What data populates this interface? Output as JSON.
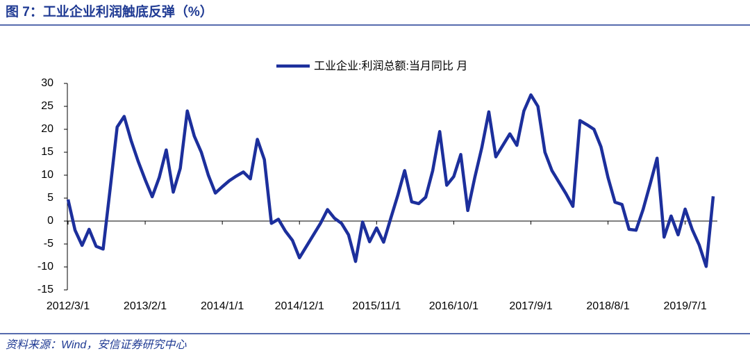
{
  "chart_data": {
    "type": "line",
    "title": "图 7：工业企业利润触底反弹（%）",
    "source": "资料来源：Wind，安信证券研究中心",
    "categories": [
      "2012/3/1",
      null,
      null,
      null,
      null,
      null,
      null,
      null,
      null,
      null,
      null,
      "2013/2/1",
      null,
      null,
      null,
      null,
      null,
      null,
      null,
      null,
      null,
      null,
      "2014/1/1",
      null,
      null,
      null,
      null,
      null,
      null,
      null,
      null,
      null,
      null,
      "2014/12/1",
      null,
      null,
      null,
      null,
      null,
      null,
      null,
      null,
      null,
      null,
      "2015/11/1",
      null,
      null,
      null,
      null,
      null,
      null,
      null,
      null,
      null,
      null,
      "2016/10/1",
      null,
      null,
      null,
      null,
      null,
      null,
      null,
      null,
      null,
      null,
      "2017/9/1",
      null,
      null,
      null,
      null,
      null,
      null,
      null,
      null,
      null,
      null,
      "2018/8/1",
      null,
      null,
      null,
      null,
      null,
      null,
      null,
      null,
      null,
      null,
      "2019/7/1",
      null,
      null,
      null,
      null
    ],
    "series": [
      {
        "name": "工业企业:利润总额:当月同比 月",
        "color": "#1c2f9c",
        "values": [
          4.7,
          -2,
          -5.3,
          -1.8,
          -5.5,
          -6.1,
          7,
          20.5,
          22.8,
          17.5,
          13,
          9,
          5.3,
          9.5,
          15.5,
          6.3,
          11.5,
          24,
          18.5,
          15,
          10,
          6.1,
          7.5,
          8.8,
          9.8,
          10.7,
          9.2,
          17.8,
          13.4,
          -0.5,
          0.4,
          -2.2,
          -4.2,
          -8,
          -5.5,
          -3,
          -0.5,
          2.5,
          0.6,
          -0.5,
          -3,
          -8.8,
          -0.2,
          -4.5,
          -1.5,
          -4.6,
          0.5,
          5.5,
          11,
          4.2,
          3.8,
          5.2,
          11,
          19.5,
          7.8,
          9.7,
          14.5,
          2.3,
          9.5,
          16,
          23.8,
          14,
          16.5,
          19,
          16.5,
          24,
          27.5,
          25,
          15,
          11,
          8.5,
          6,
          3.2,
          21.9,
          21,
          20,
          16.2,
          9.5,
          4.1,
          3.6,
          -1.8,
          -2,
          2.5,
          8,
          13.7,
          -3.5,
          1.1,
          -3,
          2.6,
          -1.8,
          -5.2,
          -9.9,
          5.4
        ]
      }
    ],
    "ylim": [
      -15,
      30
    ],
    "yticks": [
      -15,
      -10,
      -5,
      0,
      5,
      10,
      15,
      20,
      25,
      30
    ]
  }
}
